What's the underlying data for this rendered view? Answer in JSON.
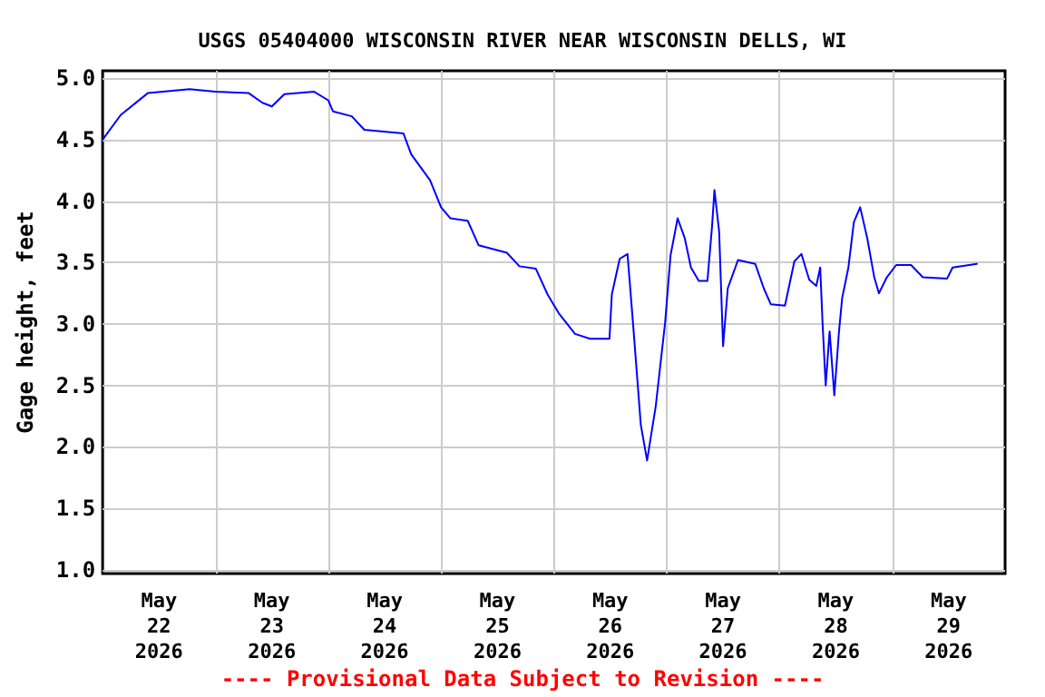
{
  "chart_data": {
    "type": "line",
    "title": "USGS 05404000 WISCONSIN RIVER NEAR WISCONSIN DELLS, WI",
    "ylabel": "Gage height, feet",
    "annotations": [
      "---- Provisional Data Subject to Revision ----"
    ],
    "x": [
      "2026-05-22T00:00",
      "2026-05-22T03:50",
      "2026-05-22T09:40",
      "2026-05-22T18:30",
      "2026-05-23T00:00",
      "2026-05-23T07:00",
      "2026-05-23T10:00",
      "2026-05-23T12:00",
      "2026-05-23T14:40",
      "2026-05-23T21:00",
      "2026-05-24T00:00",
      "2026-05-24T01:00",
      "2026-05-24T05:00",
      "2026-05-24T07:40",
      "2026-05-24T16:00",
      "2026-05-24T17:40",
      "2026-05-24T21:40",
      "2026-05-25T00:00",
      "2026-05-25T02:00",
      "2026-05-25T05:40",
      "2026-05-25T08:00",
      "2026-05-25T14:00",
      "2026-05-25T16:40",
      "2026-05-25T20:10",
      "2026-05-25T22:40",
      "2026-05-26T01:00",
      "2026-05-26T04:30",
      "2026-05-26T07:40",
      "2026-05-26T11:50",
      "2026-05-26T12:20",
      "2026-05-26T14:00",
      "2026-05-26T15:40",
      "2026-05-26T16:50",
      "2026-05-26T18:30",
      "2026-05-26T19:50",
      "2026-05-26T21:40",
      "2026-05-26T23:40",
      "2026-05-27T00:50",
      "2026-05-27T02:20",
      "2026-05-27T03:50",
      "2026-05-27T05:10",
      "2026-05-27T06:50",
      "2026-05-27T08:40",
      "2026-05-27T09:40",
      "2026-05-27T10:10",
      "2026-05-27T11:10",
      "2026-05-27T12:00",
      "2026-05-27T13:00",
      "2026-05-27T15:10",
      "2026-05-27T18:50",
      "2026-05-27T20:40",
      "2026-05-27T22:10",
      "2026-05-28T01:10",
      "2026-05-28T03:10",
      "2026-05-28T04:40",
      "2026-05-28T06:20",
      "2026-05-28T07:50",
      "2026-05-28T08:40",
      "2026-05-28T09:10",
      "2026-05-28T09:50",
      "2026-05-28T10:40",
      "2026-05-28T11:40",
      "2026-05-28T12:40",
      "2026-05-28T13:20",
      "2026-05-28T14:40",
      "2026-05-28T15:50",
      "2026-05-28T17:10",
      "2026-05-28T18:40",
      "2026-05-28T20:10",
      "2026-05-28T21:10",
      "2026-05-28T22:50",
      "2026-05-29T00:50",
      "2026-05-29T04:00",
      "2026-05-29T06:30",
      "2026-05-29T11:40",
      "2026-05-29T12:50",
      "2026-05-29T18:00"
    ],
    "series": [
      {
        "color": "#0000ff",
        "values": [
          4.5,
          4.7,
          4.88,
          4.91,
          4.89,
          4.88,
          4.8,
          4.77,
          4.87,
          4.89,
          4.82,
          4.73,
          4.69,
          4.58,
          4.55,
          4.38,
          4.17,
          3.95,
          3.86,
          3.84,
          3.64,
          3.58,
          3.47,
          3.45,
          3.24,
          3.09,
          2.92,
          2.88,
          2.88,
          3.24,
          3.53,
          3.57,
          3.01,
          2.18,
          1.89,
          2.33,
          3.01,
          3.56,
          3.86,
          3.7,
          3.46,
          3.35,
          3.35,
          3.8,
          4.09,
          3.75,
          2.82,
          3.29,
          3.52,
          3.49,
          3.29,
          3.16,
          3.15,
          3.51,
          3.57,
          3.36,
          3.31,
          3.46,
          3.01,
          2.5,
          2.94,
          2.42,
          2.94,
          3.21,
          3.46,
          3.83,
          3.95,
          3.7,
          3.38,
          3.25,
          3.38,
          3.48,
          3.48,
          3.38,
          3.37,
          3.46,
          3.49
        ]
      }
    ],
    "xlim": [
      "2026-05-22T00:00",
      "2026-05-30T00:00"
    ],
    "xticks": [
      {
        "value": "2026-05-22T12:00",
        "label": "May\n22\n2026"
      },
      {
        "value": "2026-05-23T00:00",
        "label": null
      },
      {
        "value": "2026-05-23T12:00",
        "label": "May\n23\n2026"
      },
      {
        "value": "2026-05-24T00:00",
        "label": null
      },
      {
        "value": "2026-05-24T12:00",
        "label": "May\n24\n2026"
      },
      {
        "value": "2026-05-25T00:00",
        "label": null
      },
      {
        "value": "2026-05-25T12:00",
        "label": "May\n25\n2026"
      },
      {
        "value": "2026-05-26T00:00",
        "label": null
      },
      {
        "value": "2026-05-26T12:00",
        "label": "May\n26\n2026"
      },
      {
        "value": "2026-05-27T00:00",
        "label": null
      },
      {
        "value": "2026-05-27T12:00",
        "label": "May\n27\n2026"
      },
      {
        "value": "2026-05-28T00:00",
        "label": null
      },
      {
        "value": "2026-05-28T12:00",
        "label": "May\n28\n2026"
      },
      {
        "value": "2026-05-29T00:00",
        "label": null
      },
      {
        "value": "2026-05-29T12:00",
        "label": "May\n29\n2026"
      }
    ],
    "ylim": [
      0.97,
      5.06
    ],
    "yticks": [
      {
        "value": 1,
        "label": "1.0"
      },
      {
        "value": 1.5,
        "label": "1.5"
      },
      {
        "value": 2,
        "label": "2.0"
      },
      {
        "value": 2.5,
        "label": "2.5"
      },
      {
        "value": 3,
        "label": "3.0"
      },
      {
        "value": 3.5,
        "label": "3.5"
      },
      {
        "value": 4,
        "label": "4.0"
      },
      {
        "value": 4.5,
        "label": "4.5"
      },
      {
        "value": 5,
        "label": "5.0"
      }
    ],
    "grid": true,
    "marker": "none",
    "line_style": "solid"
  }
}
